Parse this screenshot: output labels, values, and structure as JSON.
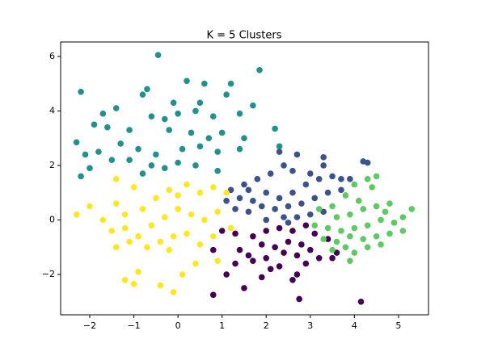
{
  "chart_data": {
    "type": "scatter",
    "title": "K  = 5 Clusters",
    "xlim": [
      -2.66,
      5.68
    ],
    "ylim": [
      -3.48,
      6.53
    ],
    "xticks": [
      {
        "value": -2,
        "label": "−2"
      },
      {
        "value": -1,
        "label": "−1"
      },
      0,
      1,
      2,
      3,
      4,
      5
    ],
    "yticks": [
      {
        "value": -2,
        "label": "−2"
      },
      0,
      2,
      4,
      6
    ],
    "series": [
      {
        "color": "#21918c",
        "x": [
          -2.2,
          -0.45,
          1.85,
          0.2,
          1.2,
          0.6,
          -0.7,
          -0.8,
          -1.7,
          -1.9,
          -1.6,
          -1.1,
          -0.6,
          -0.3,
          0.0,
          0.4,
          0.8,
          1.4,
          -0.2,
          0.3,
          0.7,
          1.0,
          1.5,
          -1.3,
          -0.9,
          -0.5,
          0.1,
          0.5,
          0.9,
          -2.1,
          -1.8,
          -2.0,
          -2.2,
          -1.5,
          -1.1,
          -0.6,
          -0.3,
          0.0,
          0.4,
          0.9,
          -0.8,
          1.4,
          2.2,
          2.3,
          -2.3,
          -1.4,
          0.5,
          -0.1,
          1.1,
          1.7
        ],
        "y": [
          4.7,
          6.05,
          5.5,
          5.1,
          5.0,
          5.0,
          4.8,
          4.6,
          3.9,
          3.5,
          3.4,
          3.3,
          3.8,
          3.7,
          3.9,
          4.0,
          3.8,
          3.9,
          3.3,
          3.2,
          3.0,
          3.2,
          3.0,
          2.8,
          2.6,
          2.4,
          2.6,
          2.7,
          2.5,
          2.4,
          2.5,
          1.9,
          1.6,
          2.2,
          2.2,
          2.0,
          1.9,
          2.1,
          2.0,
          1.8,
          1.7,
          2.6,
          3.35,
          2.7,
          2.85,
          4.1,
          4.3,
          4.3,
          4.6,
          4.2
        ]
      },
      {
        "color": "#3b528b",
        "x": [
          1.2,
          1.5,
          1.8,
          2.1,
          2.4,
          2.7,
          2.3,
          3.3,
          3.3,
          4.2,
          4.3,
          1.4,
          1.7,
          2.0,
          2.3,
          2.6,
          2.9,
          3.2,
          3.5,
          3.7,
          1.3,
          1.6,
          1.9,
          2.2,
          2.5,
          2.8,
          3.1,
          3.4,
          3.7,
          2.0,
          2.4,
          2.7,
          3.0,
          3.3,
          2.6,
          3.0,
          1.1,
          1.6,
          3.9,
          2.5
        ],
        "y": [
          1.1,
          1.3,
          1.5,
          1.7,
          2.0,
          2.4,
          2.5,
          2.3,
          2.0,
          2.15,
          2.1,
          0.8,
          0.7,
          1.0,
          0.8,
          1.0,
          1.3,
          1.5,
          1.6,
          1.5,
          0.4,
          0.3,
          0.5,
          0.4,
          0.5,
          0.6,
          0.8,
          1.0,
          1.1,
          0.0,
          0.1,
          0.1,
          0.2,
          0.3,
          1.8,
          1.7,
          0.7,
          1.1,
          1.5,
          -0.1
        ]
      },
      {
        "color": "#440154",
        "x": [
          0.8,
          1.3,
          1.7,
          2.0,
          2.3,
          2.6,
          2.9,
          1.9,
          2.2,
          2.5,
          2.8,
          3.1,
          3.4,
          1.6,
          2.0,
          2.4,
          2.7,
          3.0,
          3.5,
          1.3,
          1.7,
          2.3,
          2.9,
          3.2,
          1.1,
          1.5,
          1.9,
          2.7,
          2.1,
          0.8,
          2.75,
          4.15,
          1.0,
          1.4,
          3.6,
          2.6
        ],
        "y": [
          -1.1,
          -0.5,
          -0.6,
          -0.4,
          -0.3,
          -0.4,
          -0.2,
          -0.9,
          -1.0,
          -0.8,
          -0.9,
          -0.5,
          -0.7,
          -1.3,
          -1.4,
          -1.2,
          -1.3,
          -1.1,
          -1.4,
          -1.6,
          -1.5,
          -1.7,
          -1.6,
          -1.4,
          -2.0,
          -2.5,
          -2.1,
          -2.0,
          -1.8,
          -2.75,
          -2.9,
          -3.0,
          -0.4,
          -1.1,
          -1.2,
          -2.2
        ]
      },
      {
        "color": "#5ec962",
        "x": [
          3.2,
          3.5,
          3.8,
          4.1,
          4.4,
          4.5,
          4.3,
          3.6,
          3.9,
          4.2,
          4.5,
          4.8,
          5.1,
          5.3,
          3.4,
          3.7,
          4.0,
          4.3,
          4.6,
          4.9,
          5.1,
          3.3,
          3.6,
          3.9,
          4.2,
          4.5,
          4.8,
          3.5,
          3.8,
          4.0,
          4.3,
          3.9,
          4.6,
          3.1,
          4.7,
          4.0
        ],
        "y": [
          0.4,
          0.5,
          0.9,
          0.7,
          1.2,
          1.6,
          1.5,
          0.1,
          0.2,
          0.4,
          0.5,
          0.6,
          0.1,
          0.4,
          -0.3,
          -0.4,
          -0.3,
          -0.2,
          0.0,
          -0.1,
          -0.4,
          -0.7,
          -0.8,
          -0.6,
          -0.7,
          -0.6,
          -0.5,
          -1.1,
          -1.0,
          -1.2,
          -1.0,
          -1.5,
          -0.9,
          -0.2,
          0.3,
          1.3
        ]
      },
      {
        "color": "#fde725",
        "x": [
          -2.3,
          -2.0,
          -1.7,
          -1.4,
          -1.2,
          -1.0,
          -0.8,
          -0.5,
          -0.2,
          0.2,
          0.5,
          0.8,
          1.1,
          -1.5,
          -1.2,
          -0.9,
          -0.6,
          -0.3,
          0.0,
          0.3,
          0.6,
          0.9,
          1.2,
          -1.4,
          -1.1,
          -0.7,
          -0.4,
          -0.1,
          0.2,
          0.5,
          0.8,
          -1.2,
          -0.9,
          -0.4,
          0.1,
          0.4,
          -0.1,
          -1.0,
          -1.4,
          0.9,
          -0.2,
          0.0
        ],
        "y": [
          0.2,
          0.5,
          0.0,
          0.6,
          0.2,
          1.2,
          0.4,
          0.8,
          1.1,
          1.3,
          1.0,
          1.2,
          1.0,
          -0.4,
          -0.3,
          -0.6,
          -0.2,
          0.1,
          0.4,
          0.2,
          0.0,
          0.3,
          -0.3,
          -1.0,
          -0.8,
          -1.0,
          -0.8,
          -0.6,
          -0.5,
          -0.9,
          -0.6,
          -2.2,
          -1.9,
          -2.4,
          -2.0,
          -1.6,
          -2.65,
          -2.35,
          1.5,
          -1.5,
          -1.1,
          0.9
        ]
      }
    ]
  }
}
